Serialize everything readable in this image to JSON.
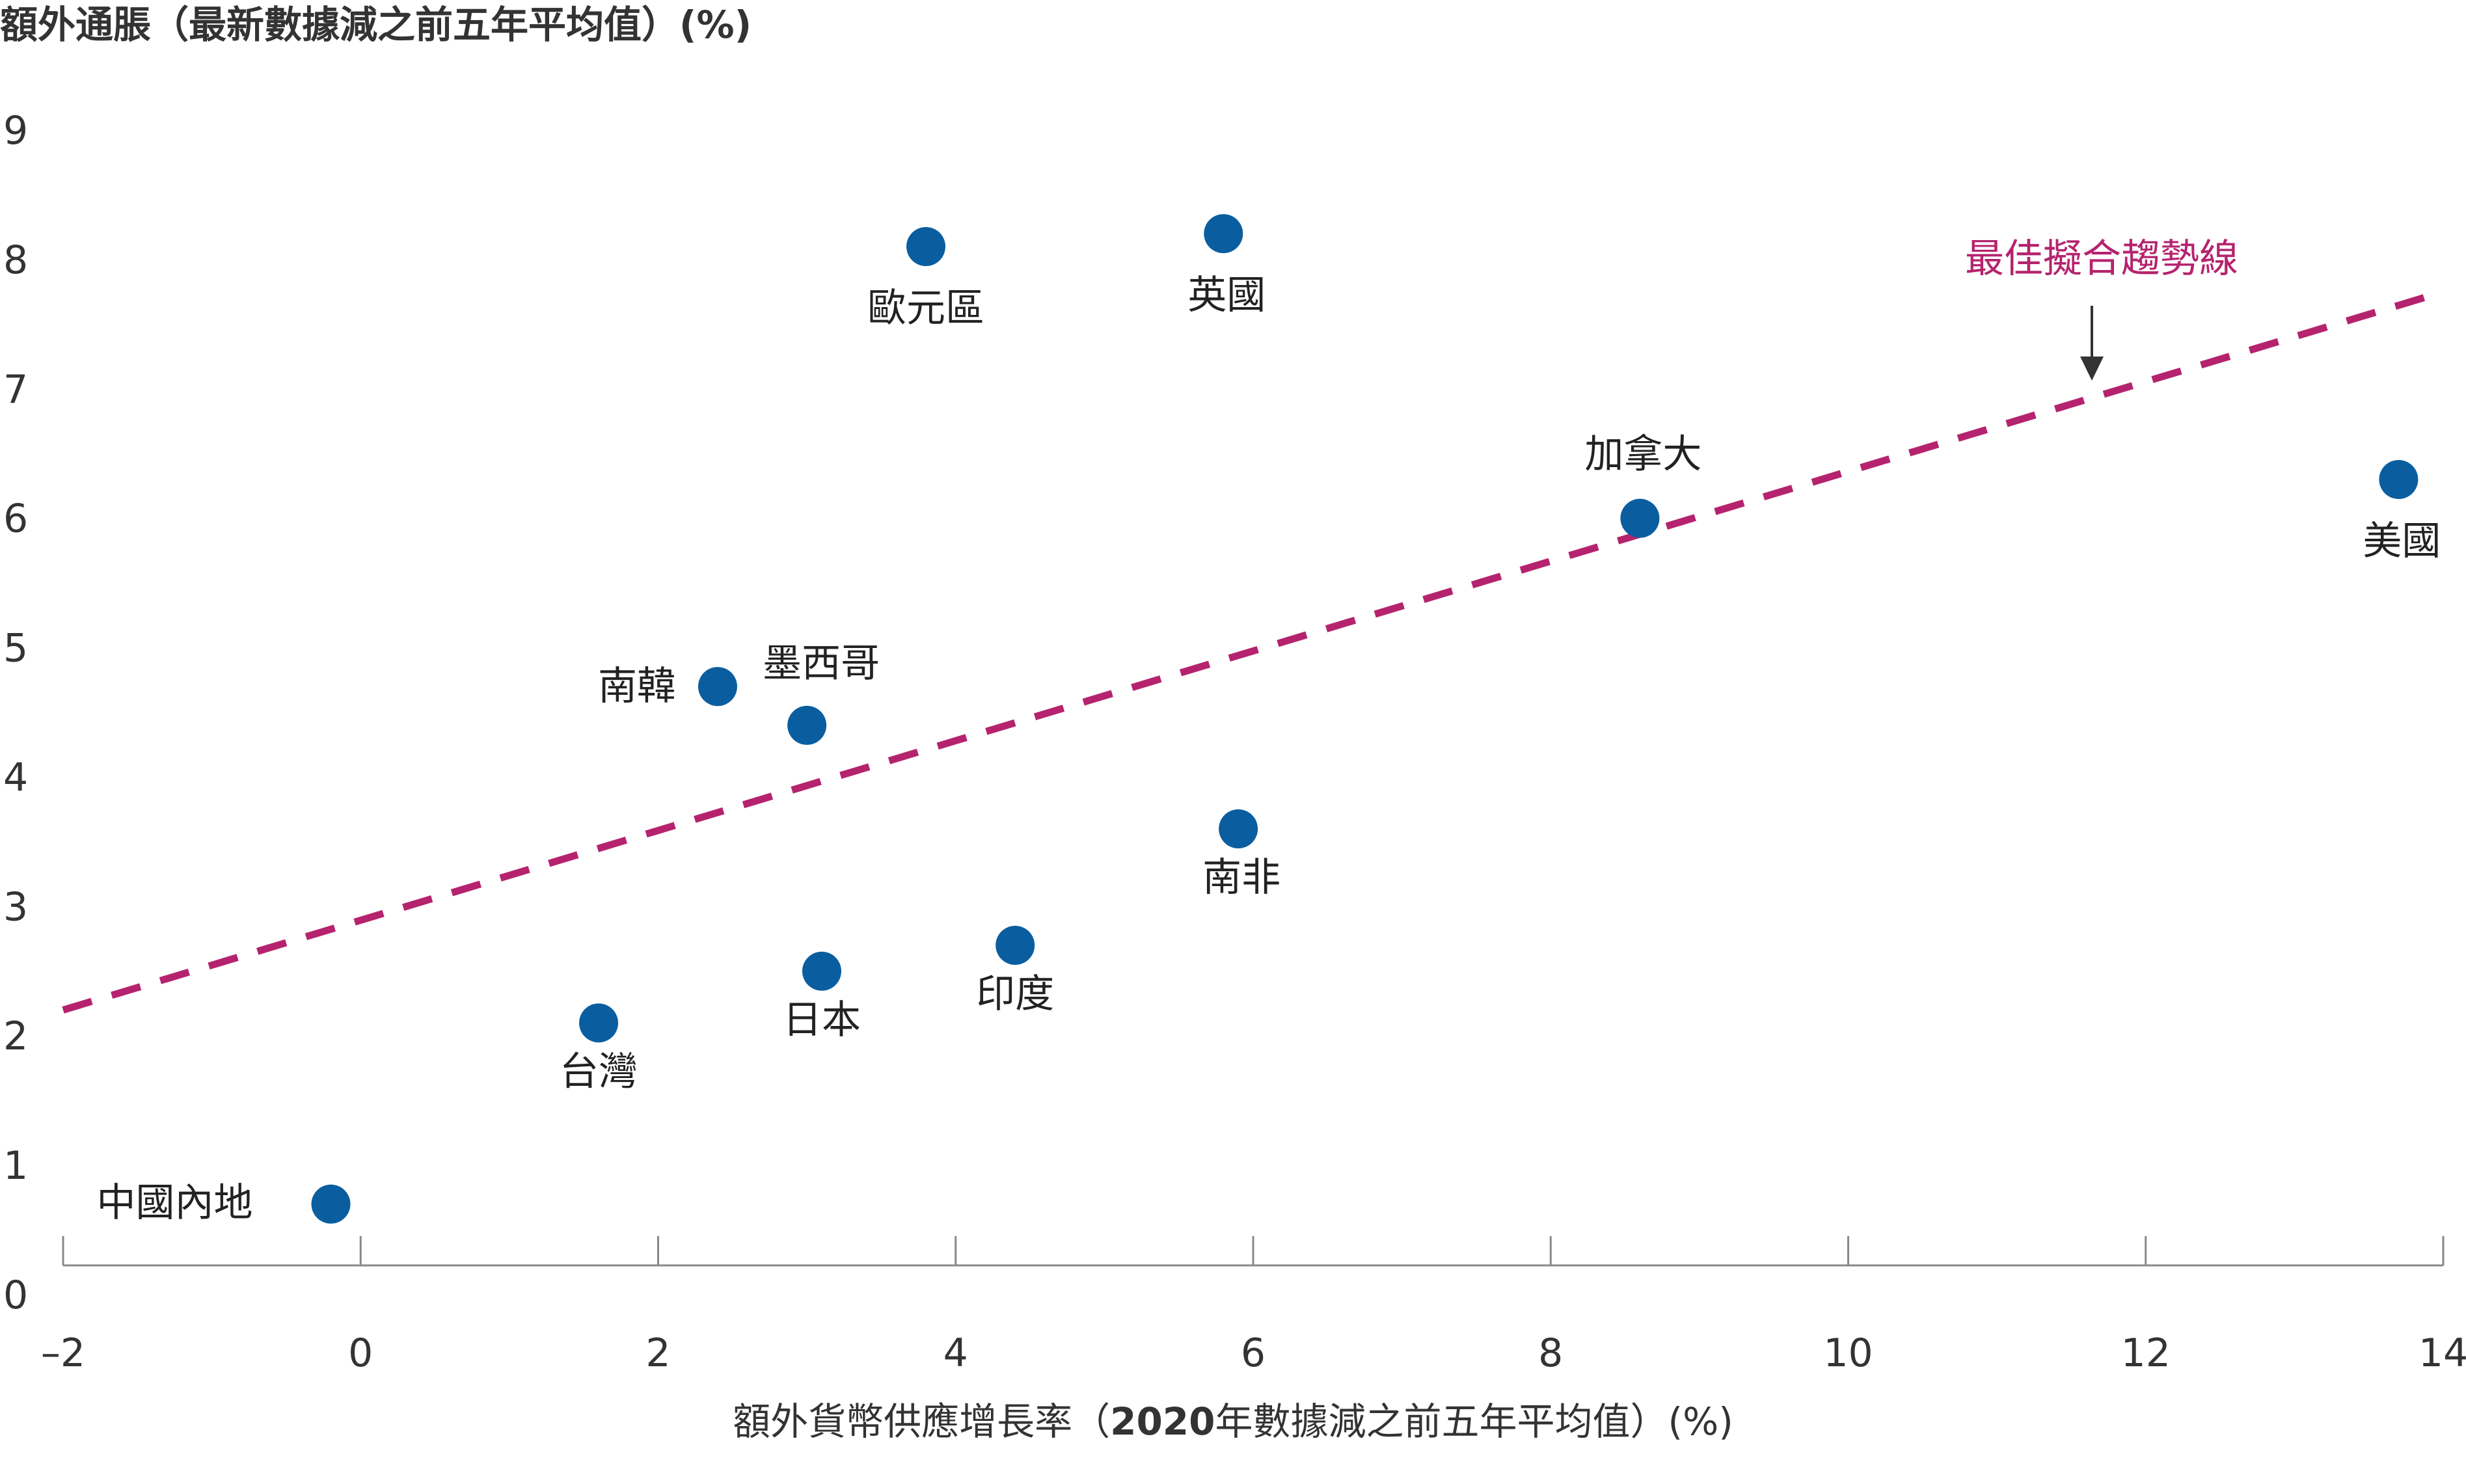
{
  "chart_data": {
    "type": "scatter",
    "title": "",
    "ylabel": "額外通脹（最新數據減之前五年平均值）(%)",
    "xlabel": {
      "prefix": "額外貨幣供應增長率（",
      "bold": "2020",
      "suffix": "年數據減之前五年平均值）(%)"
    },
    "xlim": [
      -2,
      14
    ],
    "ylim": [
      0,
      9
    ],
    "xticks": [
      "–2",
      "0",
      "2",
      "4",
      "6",
      "8",
      "10",
      "12",
      "14"
    ],
    "yticks": [
      "0",
      "1",
      "2",
      "3",
      "4",
      "5",
      "6",
      "7",
      "8",
      "9"
    ],
    "grid": false,
    "points": [
      {
        "label": "中國內地",
        "x": -0.2,
        "y": 0.7
      },
      {
        "label": "台灣",
        "x": 1.6,
        "y": 2.1
      },
      {
        "label": "日本",
        "x": 3.1,
        "y": 2.5
      },
      {
        "label": "印度",
        "x": 4.4,
        "y": 2.7
      },
      {
        "label": "南韓",
        "x": 2.4,
        "y": 4.7
      },
      {
        "label": "墨西哥",
        "x": 3.0,
        "y": 4.4
      },
      {
        "label": "南非",
        "x": 5.9,
        "y": 3.6
      },
      {
        "label": "歐元區",
        "x": 3.8,
        "y": 8.1
      },
      {
        "label": "英國",
        "x": 5.8,
        "y": 8.2
      },
      {
        "label": "加拿大",
        "x": 8.6,
        "y": 6.0
      },
      {
        "label": "美國",
        "x": 13.7,
        "y": 6.3
      }
    ],
    "trendline": {
      "label": "最佳擬合趨勢線",
      "x": [
        -2,
        14
      ],
      "y": [
        2.2,
        7.75
      ],
      "style": "dashed",
      "color": "#b5236e"
    },
    "marker_color": "#0a5ea0"
  }
}
